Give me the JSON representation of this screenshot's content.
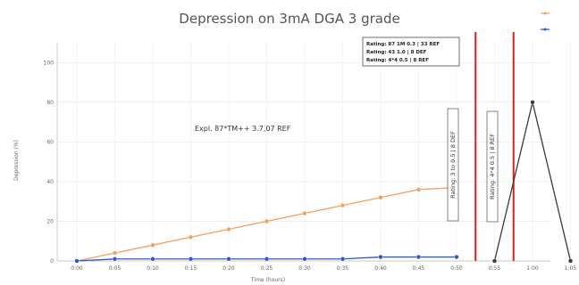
{
  "chart_data": {
    "type": "line",
    "title": "Depression on 3mA DGA 3 grade",
    "xlabel": "Time (hours)",
    "ylabel": "Depression (%)",
    "ylim": [
      0,
      110
    ],
    "yticks": [
      0,
      20,
      40,
      60,
      80,
      100
    ],
    "x_ticks": [
      "0:00",
      "0:05",
      "0:10",
      "0:15",
      "0:20",
      "0:25",
      "0:30",
      "0:35",
      "0:40",
      "0:45",
      "0:50",
      "0:55",
      "1:00",
      "1:05"
    ],
    "grid": true,
    "legend_position": "top-right",
    "series": [
      {
        "name": "",
        "color": "#f5a05a",
        "values": [
          0,
          4,
          8,
          12,
          16,
          20,
          24,
          28,
          32,
          36,
          37
        ]
      },
      {
        "name": "",
        "color": "#2e58c8",
        "values": [
          0,
          1,
          1,
          1,
          1,
          1,
          1,
          1,
          2,
          2,
          2
        ]
      },
      {
        "name": "",
        "color": "#3a3a3a",
        "x_indices": [
          11,
          12,
          13
        ],
        "values": [
          0,
          80,
          0
        ]
      }
    ],
    "annotations": {
      "fit": "Expl. 87*TM++ 3.7,07 REF",
      "box_lines": [
        "Rating: 87 1M 0.3 | 33 REF",
        "Rating: 43 1.0 | 8 DEF",
        "Rating: 4*4 0.5 | 8 REF"
      ],
      "vertical_1": "Rating: 3 to 0.5 | 8 DEF",
      "vertical_2": "Rating: 4*4 0.5 | 8 REF"
    },
    "marker_lines_color": "#d92020"
  }
}
